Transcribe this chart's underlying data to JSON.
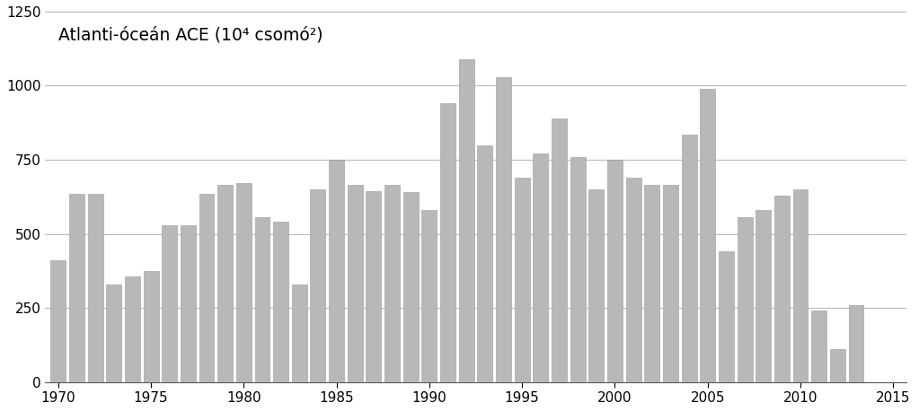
{
  "years": [
    1970,
    1971,
    1972,
    1973,
    1974,
    1975,
    1976,
    1977,
    1978,
    1979,
    1980,
    1981,
    1982,
    1983,
    1984,
    1985,
    1986,
    1987,
    1988,
    1989,
    1990,
    1991,
    1992,
    1993,
    1994,
    1995,
    1996,
    1997,
    1998,
    1999,
    2000,
    2001,
    2002,
    2003,
    2004,
    2005,
    2006,
    2007,
    2008,
    2009,
    2010,
    2011,
    2012,
    2013,
    2014
  ],
  "values": [
    410,
    635,
    635,
    330,
    355,
    375,
    530,
    530,
    635,
    665,
    670,
    555,
    540,
    330,
    650,
    750,
    665,
    645,
    665,
    640,
    580,
    940,
    1090,
    800,
    1030,
    690,
    770,
    890,
    760,
    650,
    750,
    690,
    665,
    665,
    835,
    990,
    440,
    555,
    580,
    630,
    650,
    240,
    110,
    260,
    0
  ],
  "bar_color": "#b8b8b8",
  "bar_edge_color": "#999999",
  "title": "Atlanti-óceán ACE (10⁴ csomó²)",
  "ylim": [
    0,
    1250
  ],
  "yticks": [
    0,
    250,
    500,
    750,
    1000,
    1250
  ],
  "xtick_years": [
    1970,
    1975,
    1980,
    1985,
    1990,
    1995,
    2000,
    2005,
    2010,
    2015
  ],
  "xlim_left": 1969.3,
  "xlim_right": 2015.7,
  "background_color": "#ffffff",
  "grid_color": "#bbbbbb",
  "title_fontsize": 13.5,
  "tick_fontsize": 11
}
